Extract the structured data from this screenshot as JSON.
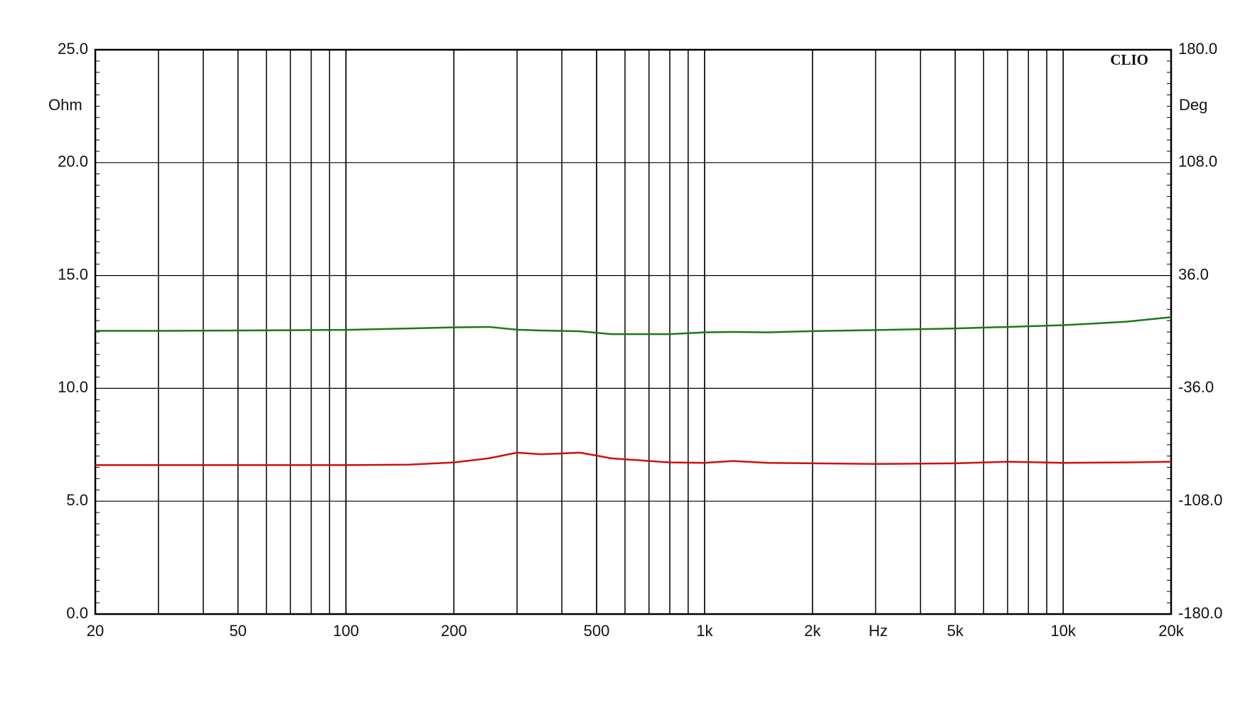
{
  "chart_data": {
    "type": "line",
    "brand": "CLIO",
    "y_label": "Ohm",
    "y2_label": "Deg",
    "x_label": "Hz",
    "log_x": true,
    "grid": true,
    "xlim": [
      20,
      20000
    ],
    "xticks": [
      20,
      50,
      100,
      200,
      500,
      {
        "value": 1000,
        "label": "1k"
      },
      {
        "value": 2000,
        "label": "2k"
      },
      {
        "value": 5000,
        "label": "5k"
      },
      {
        "value": 10000,
        "label": "10k"
      },
      {
        "value": 20000,
        "label": "20k"
      }
    ],
    "ylim": [
      0,
      25
    ],
    "yticks": [
      {
        "value": 0,
        "label": "0.0"
      },
      {
        "value": 5,
        "label": "5.0"
      },
      {
        "value": 10,
        "label": "10.0"
      },
      {
        "value": 15,
        "label": "15.0"
      },
      {
        "value": 20,
        "label": "20.0"
      },
      {
        "value": 25,
        "label": "25.0"
      }
    ],
    "y2lim": [
      -180,
      180
    ],
    "y2ticks": [
      {
        "value": -180,
        "label": "-180.0"
      },
      {
        "value": -108,
        "label": "-108.0"
      },
      {
        "value": -36,
        "label": "-36.0"
      },
      {
        "value": 36,
        "label": "36.0"
      },
      {
        "value": 108,
        "label": "108.0"
      },
      {
        "value": 180,
        "label": "180.0"
      }
    ],
    "x": [
      20,
      30,
      50,
      100,
      150,
      200,
      250,
      300,
      350,
      450,
      550,
      800,
      1000,
      1200,
      1500,
      2000,
      3000,
      5000,
      7000,
      10000,
      15000,
      20000
    ],
    "series": [
      {
        "color": "#cc1111",
        "values": [
          6.6,
          6.6,
          6.6,
          6.6,
          6.62,
          6.72,
          6.9,
          7.15,
          7.08,
          7.15,
          6.9,
          6.72,
          6.7,
          6.78,
          6.7,
          6.68,
          6.65,
          6.68,
          6.75,
          6.7,
          6.72,
          6.75
        ]
      },
      {
        "color": "#1a7a1a",
        "axis": "y2",
        "values": [
          0.7,
          0.7,
          0.9,
          1.3,
          2.2,
          2.9,
          3.2,
          1.4,
          0.9,
          0.4,
          -1.4,
          -1.4,
          -0.3,
          0,
          -0.3,
          0.5,
          1.2,
          2.2,
          3.2,
          4.3,
          6.5,
          9.4
        ]
      }
    ]
  }
}
